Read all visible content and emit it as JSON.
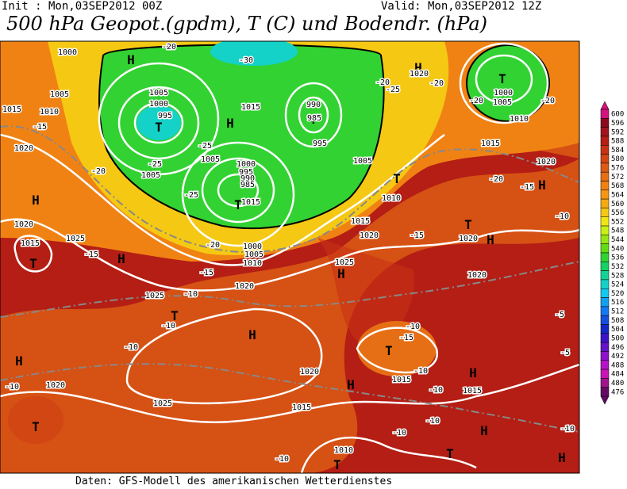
{
  "header": {
    "init": "Init : Mon,03SEP2012 00Z",
    "valid": "Valid: Mon,03SEP2012 12Z",
    "title": "500 hPa Geopot.(gpdm), T (C) und Bodendr. (hPa)"
  },
  "footer": "Daten: GFS-Modell des amerikanischen Wetterdienstes",
  "legend": {
    "levels": [
      600,
      596,
      592,
      588,
      584,
      580,
      576,
      572,
      568,
      564,
      560,
      556,
      552,
      548,
      544,
      540,
      536,
      532,
      528,
      524,
      520,
      516,
      512,
      508,
      504,
      500,
      496,
      492,
      488,
      484,
      480,
      476
    ],
    "colors": [
      "#d2147d",
      "#8c0a1e",
      "#a0141e",
      "#b41e14",
      "#c83214",
      "#d24614",
      "#dc5a14",
      "#e66e14",
      "#f08214",
      "#f59614",
      "#f5aa14",
      "#f5c814",
      "#f0e614",
      "#c8f014",
      "#96e614",
      "#64dc14",
      "#32d232",
      "#14d264",
      "#14d296",
      "#14d2c8",
      "#14c8f0",
      "#14a0f0",
      "#1478f0",
      "#1450dc",
      "#1428c8",
      "#3c14c8",
      "#6414c8",
      "#8c14c8",
      "#b414c8",
      "#c814b4",
      "#a0148c",
      "#640a64"
    ]
  },
  "map_labels": [
    "H",
    "H",
    "T",
    "T",
    "H",
    "T",
    "T",
    "H",
    "T",
    "H",
    "T",
    "T",
    "H",
    "H",
    "H",
    "T",
    "H",
    "T",
    "H",
    "H",
    "H",
    "T",
    "H",
    "T",
    "H",
    "T",
    "1000",
    "1005",
    "1010",
    "1015",
    "1020",
    "1020",
    "1015",
    "1025",
    "1025",
    "1020",
    "1010",
    "1005",
    "1000",
    "1015",
    "990",
    "985",
    "995",
    "1005",
    "1000",
    "995",
    "1005",
    "1005",
    "1000",
    "995",
    "990",
    "985",
    "1015",
    "1005",
    "1010",
    "1015",
    "1020",
    "1025",
    "1020",
    "1020",
    "1015",
    "1010",
    "1000",
    "1005",
    "1020",
    "1020",
    "1020",
    "1015",
    "1015",
    "1015",
    "1010",
    "1025",
    "1020",
    "-20",
    "-30",
    "-25",
    "-25",
    "-25",
    "-20",
    "-20",
    "-15",
    "-15",
    "-10",
    "-10",
    "-10",
    "-10",
    "-15",
    "-20",
    "-25",
    "-20",
    "-20",
    "-20",
    "-20",
    "-15",
    "-15",
    "-10",
    "-5",
    "-5",
    "-10",
    "-15",
    "-10",
    "-10",
    "-10",
    "-10",
    "-10",
    "-10"
  ]
}
